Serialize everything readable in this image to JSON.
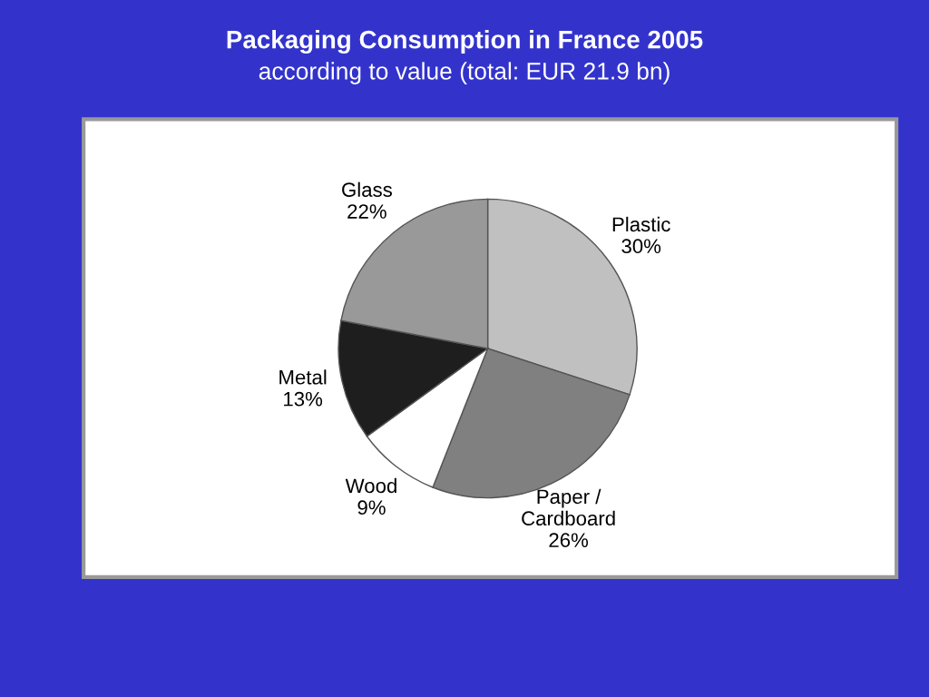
{
  "chart_data": {
    "type": "pie",
    "title": "Packaging Consumption in France 2005",
    "subtitle": "according to value (total: EUR 21.9 bn)",
    "categories": [
      "Plastic",
      "Paper /\nCardboard",
      "Wood",
      "Metal",
      "Glass"
    ],
    "values": [
      30,
      26,
      9,
      13,
      22
    ],
    "value_labels": [
      "30%",
      "26%",
      "9%",
      "13%",
      "22%"
    ],
    "colors": [
      "#c0c0c0",
      "#808080",
      "#ffffff",
      "#1e1e1e",
      "#999999"
    ],
    "legend": false
  }
}
